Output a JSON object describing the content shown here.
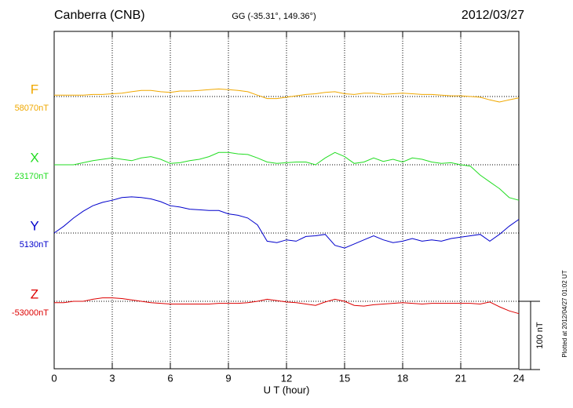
{
  "chart_data": {
    "type": "line",
    "title": "Canberra (CNB)",
    "subtitle": "GG (-35.31°, 149.36°)",
    "date": "2012/03/27",
    "x_label": "U T (hour)",
    "note": "Plotted at 2012/04/27 01:02 UT",
    "scale_bar": {
      "value": 100,
      "label": "100 nT"
    },
    "xlim": [
      0,
      24
    ],
    "xticks": [
      0,
      3,
      6,
      9,
      12,
      15,
      18,
      21,
      24
    ],
    "grid": true,
    "x": [
      0,
      0.5,
      1,
      1.5,
      2,
      2.5,
      3,
      3.5,
      4,
      4.5,
      5,
      5.5,
      6,
      6.5,
      7,
      7.5,
      8,
      8.5,
      9,
      9.5,
      10,
      10.5,
      11,
      11.5,
      12,
      12.5,
      13,
      13.5,
      14,
      14.5,
      15,
      15.5,
      16,
      16.5,
      17,
      17.5,
      18,
      18.5,
      19,
      19.5,
      20,
      20.5,
      21,
      21.5,
      22,
      22.5,
      23,
      23.5,
      24
    ],
    "series": [
      {
        "name": "F",
        "color": "#f0a800",
        "baseline": 58070,
        "baseline_label": "58070nT",
        "values": [
          2,
          2,
          2,
          2,
          3,
          3,
          4,
          5,
          7,
          9,
          9,
          7,
          6,
          8,
          8,
          9,
          10,
          11,
          10,
          9,
          7,
          2,
          -3,
          -3,
          -1,
          1,
          3,
          4,
          6,
          7,
          4,
          3,
          5,
          5,
          3,
          4,
          5,
          4,
          3,
          3,
          2,
          1,
          1,
          0,
          -1,
          -5,
          -8,
          -5,
          -2
        ]
      },
      {
        "name": "X",
        "color": "#22dd22",
        "baseline": 23170,
        "baseline_label": "23170nT",
        "values": [
          0,
          0,
          0,
          3,
          6,
          8,
          10,
          8,
          6,
          10,
          12,
          8,
          2,
          3,
          6,
          8,
          12,
          18,
          18,
          16,
          15,
          10,
          4,
          2,
          3,
          4,
          4,
          0,
          10,
          18,
          12,
          2,
          4,
          10,
          5,
          8,
          4,
          10,
          8,
          4,
          2,
          3,
          0,
          -2,
          -15,
          -25,
          -35,
          -48,
          -52
        ]
      },
      {
        "name": "Y",
        "color": "#0000cc",
        "baseline": 5130,
        "baseline_label": "5130nT",
        "values": [
          0,
          10,
          22,
          32,
          40,
          45,
          48,
          52,
          53,
          52,
          50,
          46,
          40,
          38,
          35,
          34,
          33,
          33,
          28,
          26,
          22,
          12,
          -12,
          -14,
          -10,
          -12,
          -5,
          -4,
          -2,
          -18,
          -22,
          -16,
          -10,
          -4,
          -10,
          -14,
          -12,
          -8,
          -12,
          -10,
          -12,
          -8,
          -6,
          -4,
          -2,
          -12,
          -2,
          10,
          20
        ]
      },
      {
        "name": "Z",
        "color": "#dd0000",
        "baseline": -53000,
        "baseline_label": "-53000nT",
        "values": [
          -2,
          -2,
          0,
          0,
          3,
          5,
          5,
          4,
          2,
          0,
          -2,
          -3,
          -4,
          -4,
          -4,
          -4,
          -4,
          -3,
          -3,
          -3,
          -2,
          0,
          3,
          1,
          -1,
          -2,
          -4,
          -6,
          -1,
          3,
          0,
          -6,
          -7,
          -5,
          -4,
          -3,
          -2,
          -3,
          -4,
          -3,
          -3,
          -3,
          -3,
          -3,
          -4,
          -1,
          -8,
          -14,
          -18
        ]
      }
    ]
  }
}
